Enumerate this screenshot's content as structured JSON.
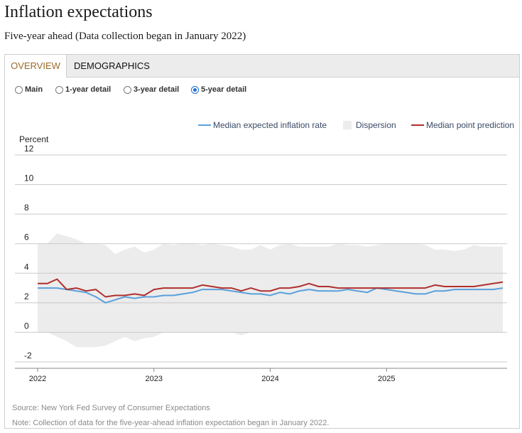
{
  "page": {
    "title": "Inflation expectations",
    "subtitle": "Five-year ahead (Data collection began in January 2022)"
  },
  "tabs": [
    {
      "label": "OVERVIEW",
      "active": true
    },
    {
      "label": "DEMOGRAPHICS",
      "active": false
    }
  ],
  "radios": [
    {
      "label": "Main",
      "checked": false
    },
    {
      "label": "1-year detail",
      "checked": false
    },
    {
      "label": "3-year detail",
      "checked": false
    },
    {
      "label": "5-year detail",
      "checked": true
    }
  ],
  "legend": {
    "median": "Median expected inflation rate",
    "dispersion": "Dispersion",
    "point": "Median point prediction"
  },
  "colors": {
    "median": "#5aa0dc",
    "point": "#b0302e",
    "dispersion": "#ececec",
    "tab_active": "#9a6a2a",
    "radio_selected": "#1a6fd6"
  },
  "chart_data": {
    "type": "line",
    "ylabel": "Percent",
    "ylim": [
      -2,
      12
    ],
    "y_ticks": [
      "12",
      "10",
      "8",
      "6",
      "4",
      "2",
      "0",
      "-2"
    ],
    "x_ticks": [
      "2022",
      "2023",
      "2024",
      "2025"
    ],
    "grid": true,
    "legend_position": "top-right",
    "series": [
      {
        "name": "Median expected inflation rate",
        "kind": "line",
        "values": [
          3.0,
          3.0,
          3.0,
          2.9,
          2.8,
          2.7,
          2.4,
          2.0,
          2.2,
          2.4,
          2.3,
          2.4,
          2.4,
          2.5,
          2.5,
          2.6,
          2.7,
          2.9,
          2.9,
          2.9,
          2.8,
          2.7,
          2.6,
          2.6,
          2.5,
          2.7,
          2.6,
          2.8,
          2.9,
          2.8,
          2.8,
          2.8,
          2.9,
          2.8,
          2.7,
          3.0,
          2.9,
          2.8,
          2.7,
          2.6,
          2.6,
          2.8,
          2.8,
          2.9,
          2.9,
          2.9,
          2.9,
          2.9,
          3.0
        ]
      },
      {
        "name": "Median point prediction",
        "kind": "line",
        "values": [
          3.3,
          3.3,
          3.6,
          2.9,
          3.0,
          2.8,
          2.9,
          2.4,
          2.5,
          2.5,
          2.6,
          2.5,
          2.9,
          3.0,
          3.0,
          3.0,
          3.0,
          3.2,
          3.1,
          3.0,
          3.0,
          2.8,
          3.0,
          2.8,
          2.8,
          3.0,
          3.0,
          3.1,
          3.3,
          3.1,
          3.1,
          3.0,
          3.0,
          3.0,
          3.0,
          3.0,
          3.0,
          3.0,
          3.0,
          3.0,
          3.0,
          3.2,
          3.1,
          3.1,
          3.1,
          3.1,
          3.2,
          3.3,
          3.4
        ]
      },
      {
        "name": "Dispersion",
        "kind": "band",
        "upper": [
          6.0,
          6.0,
          6.7,
          6.5,
          6.3,
          6.0,
          6.0,
          5.9,
          5.3,
          5.6,
          5.8,
          5.4,
          5.6,
          6.0,
          5.9,
          6.0,
          6.0,
          5.9,
          6.0,
          5.9,
          5.8,
          5.6,
          5.6,
          5.9,
          5.6,
          5.9,
          6.0,
          5.8,
          5.8,
          5.8,
          5.8,
          6.0,
          5.9,
          5.9,
          5.8,
          5.9,
          6.0,
          6.0,
          6.0,
          6.0,
          5.9,
          5.6,
          5.6,
          5.5,
          5.6,
          5.9,
          5.8,
          5.8,
          5.8
        ],
        "lower": [
          0.0,
          0.0,
          -0.3,
          -0.6,
          -1.0,
          -1.0,
          -1.0,
          -0.9,
          -0.6,
          -0.3,
          -0.6,
          -0.4,
          -0.3,
          0.0,
          0.0,
          0.0,
          0.0,
          0.0,
          0.0,
          0.0,
          0.0,
          -0.2,
          0.0,
          0.0,
          0.0,
          0.0,
          0.0,
          0.0,
          0.0,
          0.0,
          0.0,
          0.0,
          0.0,
          0.0,
          0.0,
          0.0,
          0.0,
          0.0,
          0.0,
          0.0,
          0.0,
          0.0,
          0.0,
          0.0,
          0.0,
          0.0,
          0.0,
          0.0,
          0.0
        ]
      }
    ]
  },
  "footer": {
    "source": "Source: New York Fed Survey of Consumer Expectations",
    "note": "Note: Collection of data for the five-year-ahead inflation expectation began in January 2022."
  }
}
